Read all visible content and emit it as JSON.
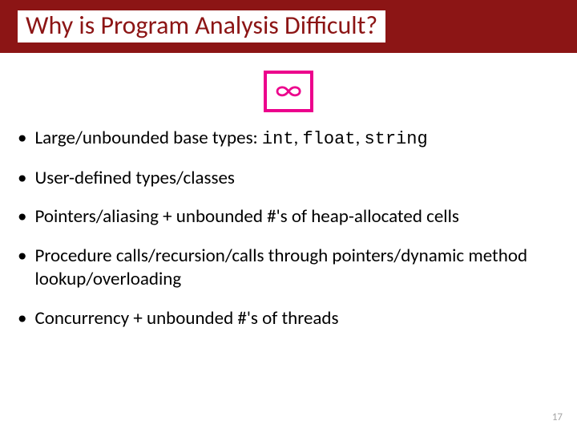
{
  "colors": {
    "band": "#8c1515",
    "accent": "#ec008c",
    "text": "#000000",
    "pagenum": "#a6a6a6",
    "background": "#ffffff"
  },
  "typography": {
    "title_fontsize": 32,
    "bullet_fontsize": 23,
    "mono_fontsize": 22,
    "infinity_fontsize": 40,
    "pagenum_fontsize": 13,
    "font_family": "Calibri, Segoe UI, Arial, sans-serif",
    "mono_family": "Courier New, monospace"
  },
  "title": "Why is Program Analysis Difficult?",
  "infinity_symbol": "∞",
  "bullets": [
    {
      "prefix": "Large/unbounded base types: ",
      "code1": "int",
      "sep1": ", ",
      "code2": "float",
      "sep2": ", ",
      "code3": "string"
    },
    {
      "text": "User-defined types/classes"
    },
    {
      "text": "Pointers/aliasing + unbounded #'s of heap-allocated cells"
    },
    {
      "text": "Procedure calls/recursion/calls through pointers/dynamic method lookup/overloading"
    },
    {
      "text": "Concurrency + unbounded #'s of threads"
    }
  ],
  "page_number": "17"
}
